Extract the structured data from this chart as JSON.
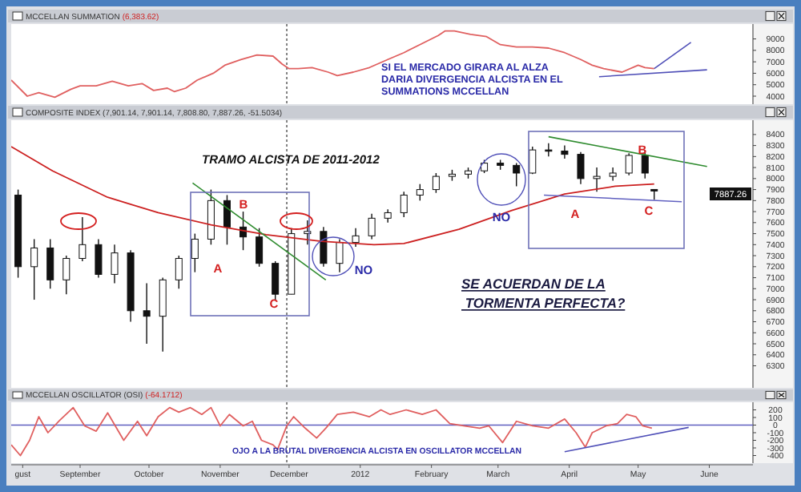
{
  "chart_data": [
    {
      "type": "line",
      "title": "MCCELLAN SUMMATION",
      "subtitle": "(6,383.62)",
      "tick_labels": "y",
      "xlim": [
        "2011-08-02",
        "2012-06-20"
      ],
      "ylim": [
        3300,
        10300
      ],
      "yticks": [
        4000,
        5000,
        6000,
        7000,
        8000,
        9000
      ],
      "series": [
        {
          "color": "#e06060",
          "x": [
            "2011-08-02",
            "2011-08-09",
            "2011-08-14",
            "2011-08-21",
            "2011-08-28",
            "2011-09-01",
            "2011-09-08",
            "2011-09-15",
            "2011-09-22",
            "2011-09-28",
            "2011-10-03",
            "2011-10-09",
            "2011-10-12",
            "2011-10-17",
            "2011-10-22",
            "2011-10-29",
            "2011-11-03",
            "2011-11-10",
            "2011-11-17",
            "2011-11-24",
            "2011-11-28",
            "2011-12-01",
            "2011-12-05",
            "2011-12-11",
            "2011-12-18",
            "2011-12-22",
            "2011-12-29",
            "2012-01-05",
            "2012-01-13",
            "2012-01-20",
            "2012-01-28",
            "2012-02-04",
            "2012-02-07",
            "2012-02-11",
            "2012-02-18",
            "2012-02-25",
            "2012-03-02",
            "2012-03-09",
            "2012-03-16",
            "2012-03-23",
            "2012-03-30",
            "2012-04-06",
            "2012-04-11",
            "2012-04-16",
            "2012-04-24",
            "2012-05-01",
            "2012-05-04",
            "2012-05-08"
          ],
          "values": [
            5400,
            4000,
            4300,
            3900,
            4600,
            4900,
            4900,
            5300,
            4900,
            5100,
            4500,
            4700,
            4400,
            4700,
            5400,
            6000,
            6700,
            7200,
            7600,
            7500,
            6800,
            6400,
            6400,
            6500,
            6100,
            5800,
            6100,
            6500,
            7200,
            7800,
            8600,
            9300,
            9700,
            9700,
            9400,
            9200,
            8500,
            8300,
            8300,
            8200,
            7800,
            7200,
            6700,
            6400,
            6100,
            6700,
            6500,
            6400
          ]
        },
        {
          "type": "line",
          "color": "#5050b8",
          "x": [
            "2012-04-14",
            "2012-05-31"
          ],
          "values": [
            5700,
            6300
          ]
        },
        {
          "type": "line",
          "color": "#5050b8",
          "x": [
            "2012-05-08",
            "2012-05-24"
          ],
          "values": [
            6400,
            8700
          ]
        }
      ],
      "ref_lines": [
        {
          "axis": "x",
          "value": "2011-11-30",
          "color": "#333333",
          "line_style": "dotted"
        }
      ],
      "annotations": [
        "SI EL MERCADO GIRARA AL ALZA\nDARIA DIVERGENCIA ALCISTA EN EL\nSUMMATIONS MCCELLAN"
      ]
    },
    {
      "type": "candlestick",
      "title": "COMPOSITE INDEX (7,901.14, 7,901.14, 7,808.80, 7,887.26, -51.5034)",
      "tick_labels": "y",
      "xlim": [
        "2011-08-02",
        "2012-06-20"
      ],
      "ylim": [
        6100,
        8530
      ],
      "yticks": [
        6300,
        6400,
        6500,
        6600,
        6700,
        6800,
        6900,
        7000,
        7100,
        7200,
        7300,
        7400,
        7500,
        7600,
        7700,
        7800,
        7900,
        8000,
        8100,
        8200,
        8300,
        8400
      ],
      "x": [
        "2011-08-05",
        "2011-08-12",
        "2011-08-19",
        "2011-08-26",
        "2011-09-02",
        "2011-09-09",
        "2011-09-16",
        "2011-09-23",
        "2011-09-30",
        "2011-10-07",
        "2011-10-14",
        "2011-10-21",
        "2011-10-28",
        "2011-11-04",
        "2011-11-11",
        "2011-11-18",
        "2011-11-25",
        "2011-12-02",
        "2011-12-09",
        "2011-12-16",
        "2011-12-23",
        "2011-12-30",
        "2012-01-06",
        "2012-01-13",
        "2012-01-20",
        "2012-01-27",
        "2012-02-03",
        "2012-02-10",
        "2012-02-17",
        "2012-02-24",
        "2012-03-02",
        "2012-03-09",
        "2012-03-16",
        "2012-03-23",
        "2012-03-30",
        "2012-04-06",
        "2012-04-13",
        "2012-04-20",
        "2012-04-27",
        "2012-05-04",
        "2012-05-08"
      ],
      "ohlc": [
        [
          7850,
          7900,
          7100,
          7200
        ],
        [
          7200,
          7450,
          6900,
          7370
        ],
        [
          7370,
          7450,
          7000,
          7080
        ],
        [
          7080,
          7300,
          6950,
          7275
        ],
        [
          7275,
          7650,
          7250,
          7400
        ],
        [
          7400,
          7450,
          7100,
          7130
        ],
        [
          7130,
          7400,
          7050,
          7325
        ],
        [
          7325,
          7350,
          6700,
          6800
        ],
        [
          6800,
          7050,
          6500,
          6750
        ],
        [
          6750,
          7100,
          6430,
          7080
        ],
        [
          7080,
          7300,
          7000,
          7275
        ],
        [
          7275,
          7500,
          7150,
          7450
        ],
        [
          7450,
          7900,
          7400,
          7800
        ],
        [
          7800,
          7850,
          7400,
          7560
        ],
        [
          7560,
          7700,
          7350,
          7470
        ],
        [
          7470,
          7550,
          7200,
          7230
        ],
        [
          7230,
          7250,
          6900,
          6950
        ],
        [
          6950,
          7550,
          6950,
          7500
        ],
        [
          7500,
          7620,
          7400,
          7520
        ],
        [
          7520,
          7560,
          7200,
          7230
        ],
        [
          7230,
          7450,
          7150,
          7420
        ],
        [
          7420,
          7550,
          7380,
          7480
        ],
        [
          7480,
          7680,
          7450,
          7640
        ],
        [
          7640,
          7720,
          7600,
          7690
        ],
        [
          7690,
          7880,
          7650,
          7850
        ],
        [
          7850,
          7950,
          7800,
          7900
        ],
        [
          7900,
          8050,
          7870,
          8020
        ],
        [
          8020,
          8080,
          7980,
          8040
        ],
        [
          8040,
          8100,
          8000,
          8070
        ],
        [
          8070,
          8170,
          8050,
          8140
        ],
        [
          8140,
          8170,
          8080,
          8120
        ],
        [
          8120,
          8140,
          7930,
          8050
        ],
        [
          8050,
          8290,
          8040,
          8260
        ],
        [
          8260,
          8320,
          8200,
          8250
        ],
        [
          8250,
          8300,
          8180,
          8220
        ],
        [
          8220,
          8240,
          7950,
          8000
        ],
        [
          8000,
          8100,
          7880,
          8020
        ],
        [
          8020,
          8100,
          7980,
          8050
        ],
        [
          8050,
          8230,
          8030,
          8210
        ],
        [
          8210,
          8250,
          8000,
          8050
        ],
        [
          7901.14,
          7901.14,
          7808.8,
          7887.26
        ]
      ],
      "series": [
        {
          "type": "line",
          "color": "#cc2020",
          "x": [
            "2011-08-02",
            "2011-08-20",
            "2011-09-13",
            "2011-10-05",
            "2011-10-28",
            "2011-11-21",
            "2011-12-15",
            "2012-01-07",
            "2012-01-20",
            "2012-02-13",
            "2012-03-07",
            "2012-03-30",
            "2012-04-21",
            "2012-05-08"
          ],
          "values": [
            8290,
            8070,
            7830,
            7690,
            7580,
            7490,
            7430,
            7400,
            7410,
            7540,
            7710,
            7860,
            7930,
            7950
          ]
        },
        {
          "type": "line",
          "color": "#2e8b2e",
          "x": [
            "2011-10-20",
            "2011-12-17"
          ],
          "values": [
            7960,
            7080
          ]
        },
        {
          "type": "line",
          "color": "#2e8b2e",
          "x": [
            "2012-03-23",
            "2012-05-31"
          ],
          "values": [
            8380,
            8110
          ]
        },
        {
          "type": "line",
          "color": "#6060c0",
          "x": [
            "2012-03-21",
            "2012-05-20"
          ],
          "values": [
            7850,
            7790
          ]
        }
      ],
      "ref_lines": [
        {
          "axis": "x",
          "value": "2011-11-30",
          "color": "#333333",
          "line_style": "dotted"
        }
      ],
      "annotations": [
        "TRAMO ALCISTA DE 2011-2012",
        "SE ACUERDAN DE LA\n TORMENTA PERFECTA?",
        "7887.26",
        "A",
        "B",
        "C",
        "NO",
        "NO",
        "A",
        "B",
        "C"
      ]
    },
    {
      "type": "line",
      "title": "MCCELLAN OSCILLATOR (OSI)",
      "subtitle": "(-64.1712)",
      "xlim": [
        "2011-08-02",
        "2012-06-20"
      ],
      "ylim": [
        -500,
        300
      ],
      "yticks": [
        -400,
        -300,
        -200,
        -100,
        0,
        100,
        200
      ],
      "xticks": [
        {
          "value": "2011-08-07",
          "label": "gust"
        },
        {
          "value": "2011-09-01",
          "label": "September"
        },
        {
          "value": "2011-10-01",
          "label": "October"
        },
        {
          "value": "2011-11-01",
          "label": "November"
        },
        {
          "value": "2011-12-01",
          "label": "December"
        },
        {
          "value": "2012-01-01",
          "label": "2012"
        },
        {
          "value": "2012-02-01",
          "label": "February"
        },
        {
          "value": "2012-03-01",
          "label": "March"
        },
        {
          "value": "2012-04-01",
          "label": "April"
        },
        {
          "value": "2012-05-01",
          "label": "May"
        },
        {
          "value": "2012-06-01",
          "label": "June"
        }
      ],
      "series": [
        {
          "color": "#e06060",
          "x": [
            "2011-08-02",
            "2011-08-06",
            "2011-08-10",
            "2011-08-14",
            "2011-08-18",
            "2011-08-23",
            "2011-08-29",
            "2011-09-03",
            "2011-09-08",
            "2011-09-13",
            "2011-09-20",
            "2011-09-26",
            "2011-09-30",
            "2011-10-05",
            "2011-10-10",
            "2011-10-14",
            "2011-10-19",
            "2011-10-24",
            "2011-10-28",
            "2011-11-01",
            "2011-11-05",
            "2011-11-11",
            "2011-11-15",
            "2011-11-19",
            "2011-11-24",
            "2011-11-26",
            "2011-11-30",
            "2011-12-03",
            "2011-12-08",
            "2011-12-13",
            "2011-12-17",
            "2011-12-22",
            "2011-12-29",
            "2012-01-05",
            "2012-01-10",
            "2012-01-14",
            "2012-01-21",
            "2012-01-28",
            "2012-02-03",
            "2012-02-09",
            "2012-02-15",
            "2012-02-22",
            "2012-02-26",
            "2012-03-03",
            "2012-03-09",
            "2012-03-16",
            "2012-03-23",
            "2012-03-30",
            "2012-04-04",
            "2012-04-08",
            "2012-04-11",
            "2012-04-17",
            "2012-04-22",
            "2012-04-26",
            "2012-04-30",
            "2012-05-03",
            "2012-05-07"
          ],
          "values": [
            -260,
            -400,
            -200,
            110,
            -100,
            60,
            230,
            -10,
            -80,
            160,
            -200,
            50,
            -140,
            110,
            230,
            170,
            230,
            140,
            230,
            -10,
            140,
            -10,
            50,
            -200,
            -260,
            -320,
            -10,
            110,
            -40,
            -170,
            -40,
            140,
            170,
            110,
            200,
            140,
            200,
            140,
            200,
            20,
            -10,
            -40,
            -10,
            -230,
            50,
            -10,
            -40,
            80,
            -100,
            -290,
            -100,
            -10,
            20,
            140,
            110,
            -10,
            -40
          ]
        },
        {
          "type": "line",
          "color": "#5050b8",
          "x": [
            "2012-03-30",
            "2012-05-23"
          ],
          "values": [
            -350,
            -30
          ]
        }
      ],
      "ref_lines": [
        {
          "axis": "x",
          "value": "2011-11-30",
          "color": "#333333",
          "line_style": "dotted"
        },
        {
          "axis": "y",
          "value": 0,
          "color": "#6060c0"
        }
      ],
      "annotations": [
        "OJO A LA BRUTAL DIVERGENCIA ALCISTA EN OSCILLATOR MCCELLAN"
      ]
    }
  ]
}
